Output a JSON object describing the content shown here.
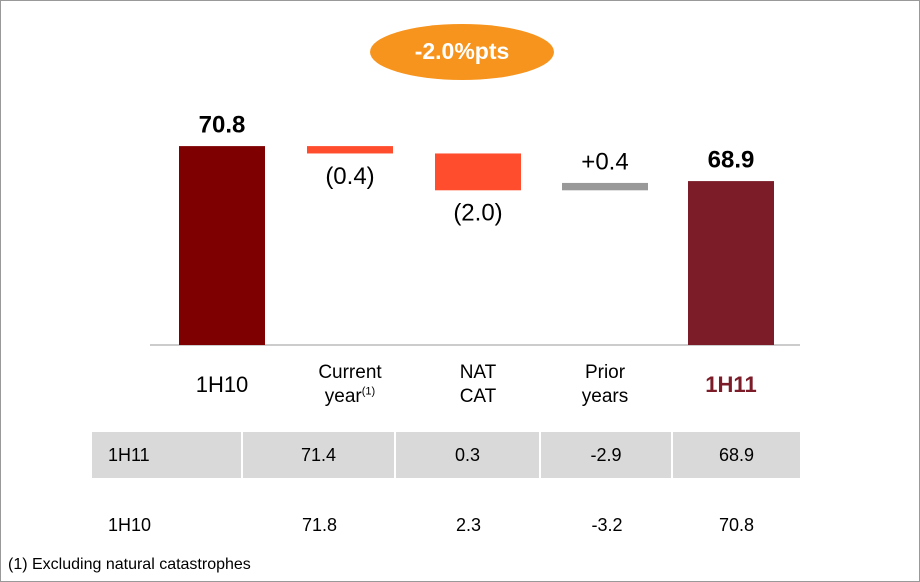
{
  "chart_data": {
    "type": "waterfall",
    "annotation": "-2.0%pts",
    "categories": [
      "1H10",
      "Current year",
      "NAT CAT",
      "Prior years",
      "1H11"
    ],
    "category_notes": [
      null,
      "(1)",
      null,
      null,
      null
    ],
    "values": [
      70.8,
      -0.4,
      -2.0,
      0.4,
      68.9
    ],
    "value_labels": [
      "70.8",
      "(0.4)",
      "(2.0)",
      "+0.4",
      "68.9"
    ],
    "totals": [
      true,
      false,
      false,
      false,
      true
    ],
    "colors": [
      "#7f0000",
      "#ff4d2e",
      "#ff4d2e",
      "#999999",
      "#7b1c28"
    ],
    "ylim": [
      60,
      72
    ]
  },
  "table": {
    "rows": [
      [
        "1H11",
        71.4,
        0.3,
        -2.9,
        68.9
      ],
      [
        "1H10",
        71.8,
        2.3,
        -3.2,
        70.8
      ]
    ]
  },
  "footnote": "(1) Excluding natural catastrophes"
}
